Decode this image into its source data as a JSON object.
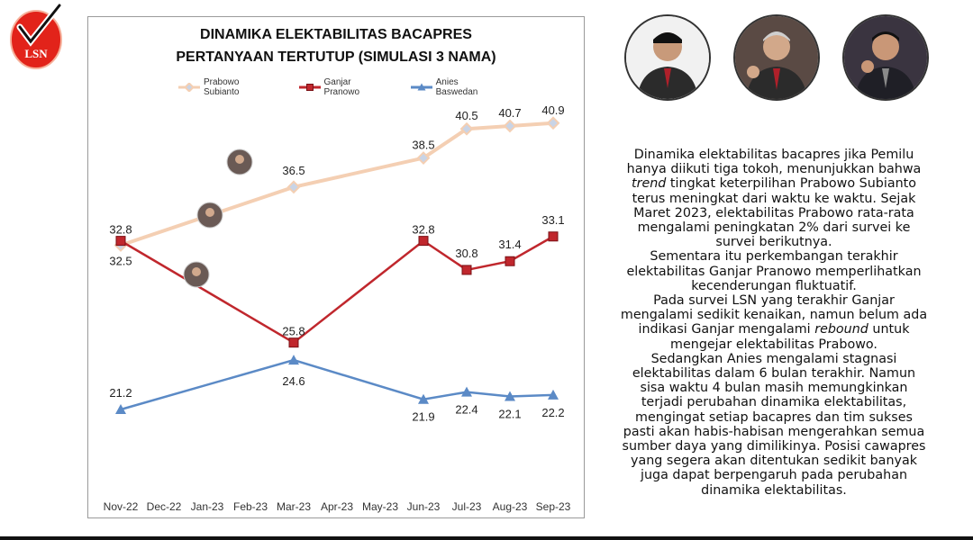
{
  "logo": {
    "text": "LSN"
  },
  "chart_data": {
    "type": "line",
    "title": "DINAMIKA ELEKTABILITAS BACAPRES",
    "subtitle": "PERTANYAAN TERTUTUP (SIMULASI 3 NAMA)",
    "categories": [
      "Nov-22",
      "Dec-22",
      "Jan-23",
      "Feb-23",
      "Mar-23",
      "Apr-23",
      "May-23",
      "Jun-23",
      "Jul-23",
      "Aug-23",
      "Sep-23"
    ],
    "series": [
      {
        "name": "Prabowo Subianto",
        "color": "#f4cfb3",
        "marker": "diamond",
        "values": [
          32.5,
          null,
          null,
          null,
          36.5,
          null,
          null,
          38.5,
          40.5,
          40.7,
          40.9
        ]
      },
      {
        "name": "Ganjar Pranowo",
        "color": "#c0272d",
        "marker": "square",
        "values": [
          32.8,
          null,
          null,
          null,
          25.8,
          null,
          null,
          32.8,
          30.8,
          31.4,
          33.1
        ]
      },
      {
        "name": "Anies Baswedan",
        "color": "#5b8ac6",
        "marker": "triangle",
        "values": [
          21.2,
          null,
          null,
          null,
          24.6,
          null,
          null,
          21.9,
          22.4,
          22.1,
          22.2
        ]
      }
    ],
    "grid": false,
    "legend_position": "top"
  },
  "photos": [
    {
      "name": "Prabowo Subianto"
    },
    {
      "name": "Ganjar Pranowo"
    },
    {
      "name": "Anies Baswedan"
    }
  ],
  "description": [
    "Dinamika elektabilitas bacapres jika Pemilu hanya diikuti tiga tokoh, menunjukkan bahwa trend tingkat keterpilihan Prabowo Subianto terus meningkat dari waktu ke waktu. Sejak Maret 2023, elektabilitas Prabowo rata-rata mengalami peningkatan 2% dari survei ke survei berikutnya.",
    "Sementara itu perkembangan terakhir elektabilitas Ganjar Pranowo memperlihatkan kecenderungan fluktuatif.",
    "Pada survei LSN yang terakhir Ganjar mengalami sedikit kenaikan, namun belum ada indikasi Ganjar mengalami rebound untuk mengejar elektabilitas Prabowo.",
    "Sedangkan Anies mengalami stagnasi elektabilitas dalam 6 bulan terakhir. Namun sisa waktu 4 bulan masih memungkinkan terjadi perubahan dinamika elektabilitas, mengingat setiap bacapres dan tim sukses pasti akan habis-habisan mengerahkan semua sumber daya yang dimilikinya. Posisi cawapres yang segera akan ditentukan sedikit banyak juga dapat berpengaruh pada perubahan dinamika elektabilitas."
  ]
}
